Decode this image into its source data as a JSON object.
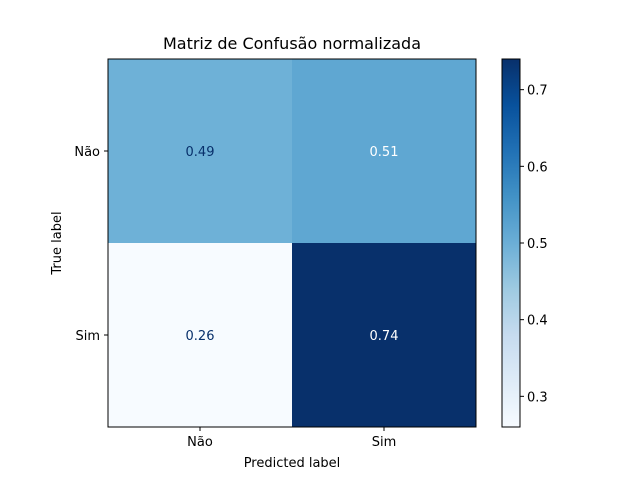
{
  "chart_data": {
    "type": "heatmap",
    "title": "Matriz de Confusão normalizada",
    "xlabel": "Predicted label",
    "ylabel": "True label",
    "x_categories": [
      "Não",
      "Sim"
    ],
    "y_categories": [
      "Não",
      "Sim"
    ],
    "values": [
      [
        0.49,
        0.51
      ],
      [
        0.26,
        0.74
      ]
    ],
    "value_labels": [
      [
        "0.49",
        "0.51"
      ],
      [
        "0.26",
        "0.74"
      ]
    ],
    "colormap": "Blues",
    "colorbar": {
      "range": [
        0.26,
        0.74
      ],
      "ticks": [
        0.3,
        0.4,
        0.5,
        0.6,
        0.7
      ],
      "tick_labels": [
        "0.3",
        "0.4",
        "0.5",
        "0.6",
        "0.7"
      ]
    },
    "cell_colors": [
      [
        "#6eb1d7",
        "#5fa7d2"
      ],
      [
        "#f7fbff",
        "#08306b"
      ]
    ],
    "grid": false
  }
}
